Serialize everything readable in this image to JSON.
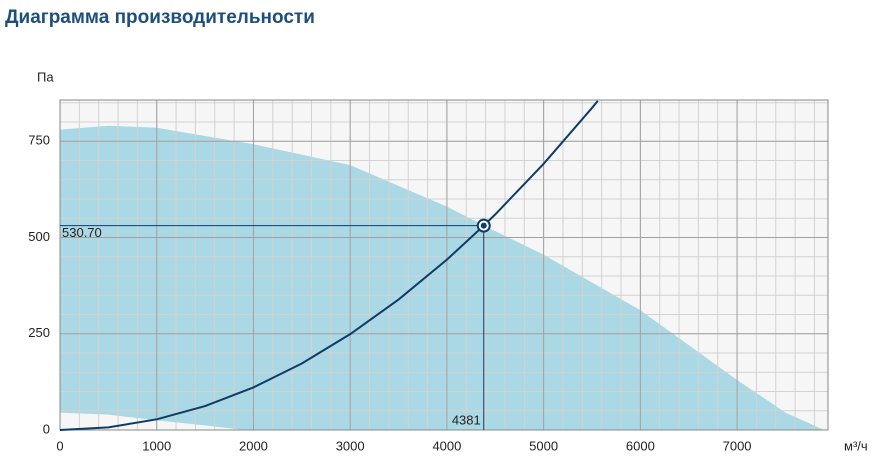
{
  "chart_data": {
    "type": "performance",
    "title": "Диаграмма производительности",
    "y_label": "Па",
    "x_label": "м³/ч",
    "xlim": [
      0,
      7940
    ],
    "ylim": [
      0,
      857
    ],
    "xticks": [
      0,
      1000,
      2000,
      3000,
      4000,
      5000,
      6000,
      7000
    ],
    "yticks": [
      0,
      250,
      500,
      750
    ],
    "x_minor_step": 200,
    "y_minor_step": 50,
    "grid": true,
    "area_color": "#aad8e4",
    "line_color": "#0e3c68",
    "area": [
      {
        "name": "upper",
        "x": [
          0,
          500,
          1000,
          2000,
          3000,
          4000,
          4381,
          5000,
          6000,
          7000,
          7500,
          7900
        ],
        "values": [
          780,
          790,
          785,
          742,
          688,
          580,
          531,
          455,
          311,
          130,
          45,
          0
        ]
      },
      {
        "name": "lower",
        "x": [
          0,
          500,
          1000,
          1500,
          1900
        ],
        "values": [
          45,
          40,
          25,
          12,
          0
        ]
      }
    ],
    "curve": {
      "x": [
        0,
        500,
        1000,
        1500,
        2000,
        2500,
        3000,
        3500,
        4000,
        4381,
        4500,
        5000,
        5500,
        5560
      ],
      "values": [
        0,
        6.9,
        27.7,
        62.2,
        110.6,
        172.8,
        248.9,
        338.7,
        442.4,
        530.7,
        559.9,
        691.3,
        836.4,
        854.8
      ]
    },
    "point": {
      "x": 4381,
      "y": 530.7,
      "labels": [
        "4381",
        "530.70"
      ]
    }
  }
}
